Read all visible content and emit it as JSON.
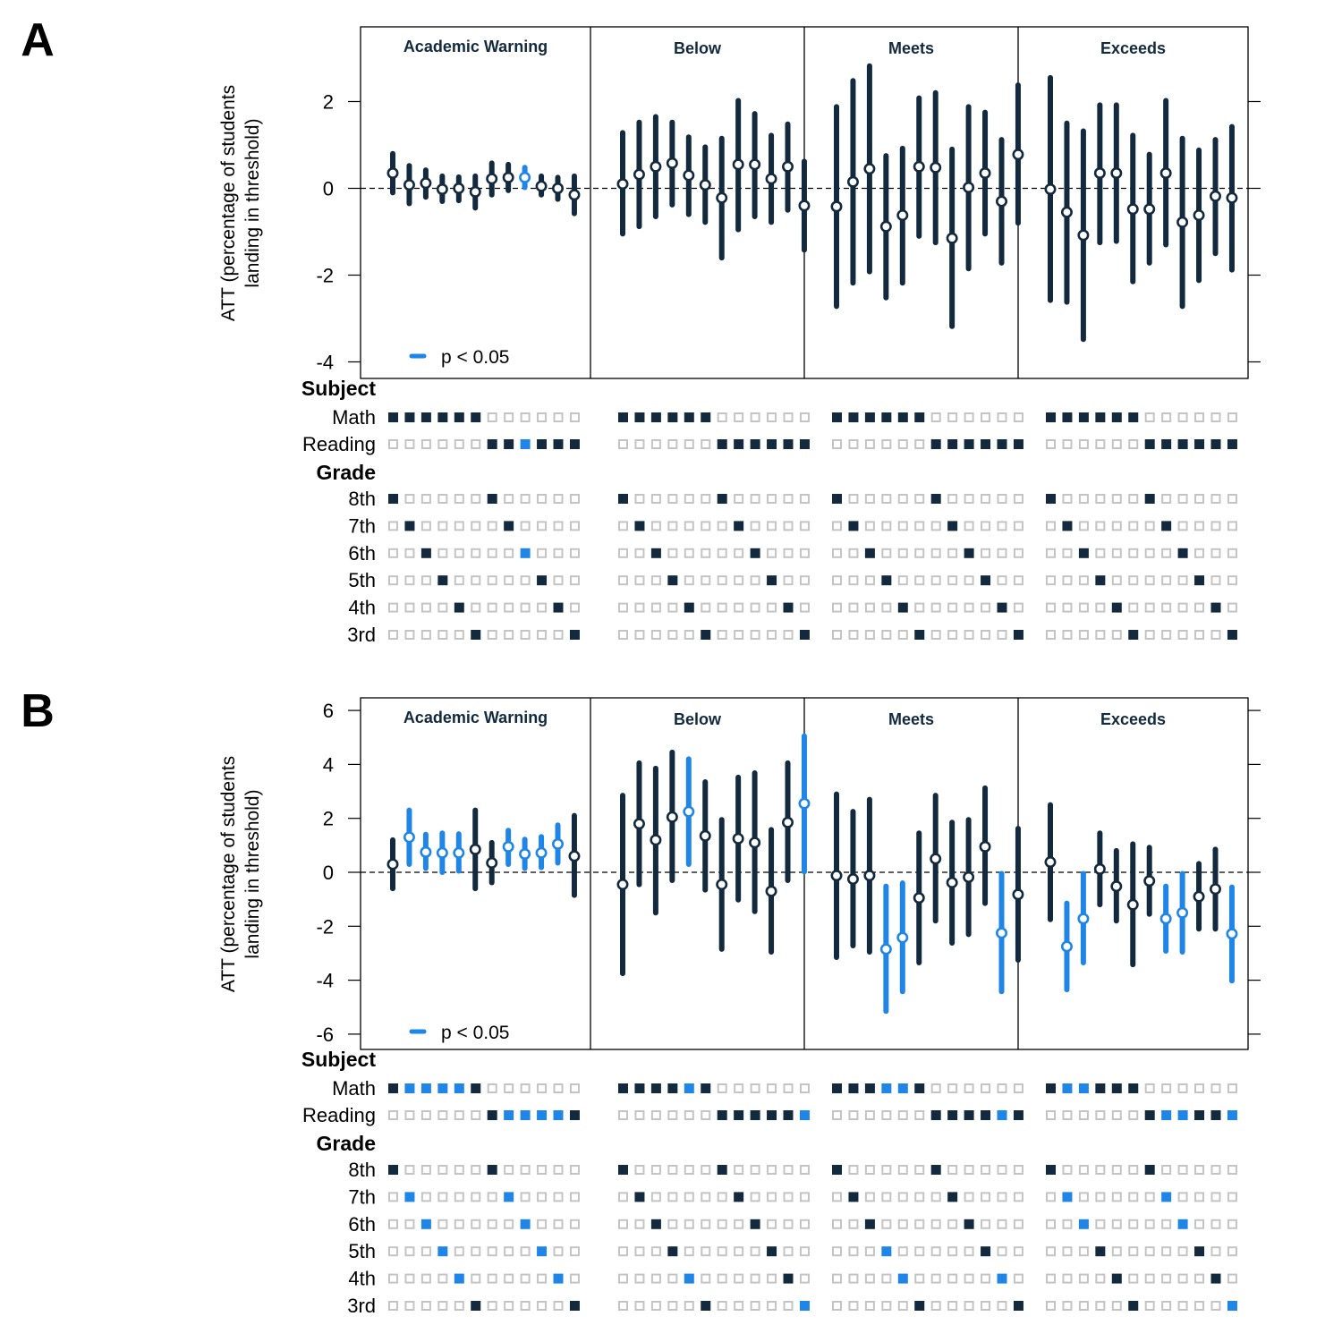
{
  "figure": {
    "panel_labels": [
      "A",
      "B"
    ],
    "colors": {
      "dark": "#13293d",
      "sig": "#1f86e8",
      "empty_square": "#c4c4c4",
      "point_fill": "#ffffff"
    },
    "legend_label": "p < 0.05",
    "ylabel_line1": "ATT (percentage of students",
    "ylabel_line2": "landing in threshold)",
    "facets": [
      "Academic Warning",
      "Below",
      "Meets",
      "Exceeds"
    ],
    "matrix": {
      "subject_header": "Subject",
      "subject_rows": [
        "Math",
        "Reading"
      ],
      "grade_header": "Grade",
      "grade_rows": [
        "8th",
        "7th",
        "6th",
        "5th",
        "4th",
        "3rd"
      ],
      "estimate_order": [
        {
          "subject": "Math",
          "grade": "8th"
        },
        {
          "subject": "Math",
          "grade": "7th"
        },
        {
          "subject": "Math",
          "grade": "6th"
        },
        {
          "subject": "Math",
          "grade": "5th"
        },
        {
          "subject": "Math",
          "grade": "4th"
        },
        {
          "subject": "Math",
          "grade": "3rd"
        },
        {
          "subject": "Reading",
          "grade": "8th"
        },
        {
          "subject": "Reading",
          "grade": "7th"
        },
        {
          "subject": "Reading",
          "grade": "6th"
        },
        {
          "subject": "Reading",
          "grade": "5th"
        },
        {
          "subject": "Reading",
          "grade": "4th"
        },
        {
          "subject": "Reading",
          "grade": "3rd"
        }
      ]
    }
  },
  "chart_data": [
    {
      "panel": "A",
      "type": "scatter",
      "title": "",
      "ylabel": "ATT (percentage of students landing in threshold)",
      "ylim": [
        -4.2,
        3.7
      ],
      "yticks": [
        -4,
        -2,
        0,
        2
      ],
      "reference_line": 0,
      "facets": [
        {
          "name": "Academic Warning",
          "estimates": [
            {
              "est": 0.35,
              "lo": -0.1,
              "hi": 0.8,
              "sig": false
            },
            {
              "est": 0.08,
              "lo": -0.35,
              "hi": 0.52,
              "sig": false
            },
            {
              "est": 0.12,
              "lo": -0.2,
              "hi": 0.42,
              "sig": false
            },
            {
              "est": -0.02,
              "lo": -0.3,
              "hi": 0.28,
              "sig": false
            },
            {
              "est": 0.0,
              "lo": -0.28,
              "hi": 0.26,
              "sig": false
            },
            {
              "est": -0.08,
              "lo": -0.45,
              "hi": 0.28,
              "sig": false
            },
            {
              "est": 0.22,
              "lo": -0.15,
              "hi": 0.58,
              "sig": false
            },
            {
              "est": 0.25,
              "lo": -0.05,
              "hi": 0.55,
              "sig": false
            },
            {
              "est": 0.25,
              "lo": 0.02,
              "hi": 0.48,
              "sig": true
            },
            {
              "est": 0.05,
              "lo": -0.15,
              "hi": 0.28,
              "sig": false
            },
            {
              "est": 0.0,
              "lo": -0.25,
              "hi": 0.25,
              "sig": false
            },
            {
              "est": -0.15,
              "lo": -0.58,
              "hi": 0.28,
              "sig": false
            }
          ]
        },
        {
          "name": "Below",
          "estimates": [
            {
              "est": 0.1,
              "lo": -1.05,
              "hi": 1.28,
              "sig": false
            },
            {
              "est": 0.32,
              "lo": -0.88,
              "hi": 1.52,
              "sig": false
            },
            {
              "est": 0.5,
              "lo": -0.65,
              "hi": 1.65,
              "sig": false
            },
            {
              "est": 0.58,
              "lo": -0.38,
              "hi": 1.52,
              "sig": false
            },
            {
              "est": 0.3,
              "lo": -0.6,
              "hi": 1.18,
              "sig": false
            },
            {
              "est": 0.08,
              "lo": -0.78,
              "hi": 0.95,
              "sig": false
            },
            {
              "est": -0.22,
              "lo": -1.6,
              "hi": 1.15,
              "sig": false
            },
            {
              "est": 0.55,
              "lo": -0.95,
              "hi": 2.02,
              "sig": false
            },
            {
              "est": 0.55,
              "lo": -0.65,
              "hi": 1.72,
              "sig": false
            },
            {
              "est": 0.22,
              "lo": -0.78,
              "hi": 1.22,
              "sig": false
            },
            {
              "est": 0.5,
              "lo": -0.5,
              "hi": 1.48,
              "sig": false
            },
            {
              "est": -0.4,
              "lo": -1.42,
              "hi": 0.62,
              "sig": false
            }
          ]
        },
        {
          "name": "Meets",
          "estimates": [
            {
              "est": -0.42,
              "lo": -2.72,
              "hi": 1.88,
              "sig": false
            },
            {
              "est": 0.15,
              "lo": -2.18,
              "hi": 2.48,
              "sig": false
            },
            {
              "est": 0.45,
              "lo": -1.92,
              "hi": 2.82,
              "sig": false
            },
            {
              "est": -0.88,
              "lo": -2.52,
              "hi": 0.75,
              "sig": false
            },
            {
              "est": -0.62,
              "lo": -2.18,
              "hi": 0.92,
              "sig": false
            },
            {
              "est": 0.5,
              "lo": -1.1,
              "hi": 2.08,
              "sig": false
            },
            {
              "est": 0.48,
              "lo": -1.25,
              "hi": 2.2,
              "sig": false
            },
            {
              "est": -1.15,
              "lo": -3.18,
              "hi": 0.9,
              "sig": false
            },
            {
              "est": 0.02,
              "lo": -1.85,
              "hi": 1.88,
              "sig": false
            },
            {
              "est": 0.35,
              "lo": -1.05,
              "hi": 1.75,
              "sig": false
            },
            {
              "est": -0.3,
              "lo": -1.72,
              "hi": 1.12,
              "sig": false
            },
            {
              "est": 0.78,
              "lo": -0.8,
              "hi": 2.38,
              "sig": false
            }
          ]
        },
        {
          "name": "Exceeds",
          "estimates": [
            {
              "est": -0.02,
              "lo": -2.58,
              "hi": 2.55,
              "sig": false
            },
            {
              "est": -0.55,
              "lo": -2.62,
              "hi": 1.5,
              "sig": false
            },
            {
              "est": -1.08,
              "lo": -3.48,
              "hi": 1.32,
              "sig": false
            },
            {
              "est": 0.35,
              "lo": -1.25,
              "hi": 1.92,
              "sig": false
            },
            {
              "est": 0.35,
              "lo": -1.22,
              "hi": 1.92,
              "sig": false
            },
            {
              "est": -0.48,
              "lo": -2.15,
              "hi": 1.22,
              "sig": false
            },
            {
              "est": -0.48,
              "lo": -1.72,
              "hi": 0.78,
              "sig": false
            },
            {
              "est": 0.35,
              "lo": -1.3,
              "hi": 2.02,
              "sig": false
            },
            {
              "est": -0.78,
              "lo": -2.72,
              "hi": 1.15,
              "sig": false
            },
            {
              "est": -0.62,
              "lo": -2.12,
              "hi": 0.88,
              "sig": false
            },
            {
              "est": -0.18,
              "lo": -1.5,
              "hi": 1.12,
              "sig": false
            },
            {
              "est": -0.22,
              "lo": -1.88,
              "hi": 1.42,
              "sig": false
            }
          ]
        }
      ]
    },
    {
      "panel": "B",
      "type": "scatter",
      "title": "",
      "ylabel": "ATT (percentage of students landing in threshold)",
      "ylim": [
        -6.6,
        6.5
      ],
      "yticks": [
        -6,
        -4,
        -2,
        0,
        2,
        4,
        6
      ],
      "reference_line": 0,
      "facets": [
        {
          "name": "Academic Warning",
          "estimates": [
            {
              "est": 0.3,
              "lo": -0.6,
              "hi": 1.2,
              "sig": false
            },
            {
              "est": 1.3,
              "lo": 0.3,
              "hi": 2.3,
              "sig": true
            },
            {
              "est": 0.75,
              "lo": 0.15,
              "hi": 1.4,
              "sig": true
            },
            {
              "est": 0.72,
              "lo": 0.0,
              "hi": 1.45,
              "sig": true
            },
            {
              "est": 0.72,
              "lo": 0.05,
              "hi": 1.42,
              "sig": true
            },
            {
              "est": 0.85,
              "lo": -0.6,
              "hi": 2.3,
              "sig": false
            },
            {
              "est": 0.35,
              "lo": -0.38,
              "hi": 1.1,
              "sig": false
            },
            {
              "est": 0.95,
              "lo": 0.3,
              "hi": 1.55,
              "sig": true
            },
            {
              "est": 0.68,
              "lo": 0.15,
              "hi": 1.22,
              "sig": true
            },
            {
              "est": 0.72,
              "lo": 0.18,
              "hi": 1.32,
              "sig": true
            },
            {
              "est": 1.05,
              "lo": 0.35,
              "hi": 1.75,
              "sig": true
            },
            {
              "est": 0.6,
              "lo": -0.85,
              "hi": 2.1,
              "sig": false
            }
          ]
        },
        {
          "name": "Below",
          "estimates": [
            {
              "est": -0.45,
              "lo": -3.75,
              "hi": 2.85,
              "sig": false
            },
            {
              "est": 1.8,
              "lo": -0.45,
              "hi": 4.05,
              "sig": false
            },
            {
              "est": 1.2,
              "lo": -1.5,
              "hi": 3.85,
              "sig": false
            },
            {
              "est": 2.05,
              "lo": -0.3,
              "hi": 4.45,
              "sig": false
            },
            {
              "est": 2.25,
              "lo": 0.3,
              "hi": 4.2,
              "sig": true
            },
            {
              "est": 1.35,
              "lo": -0.65,
              "hi": 3.35,
              "sig": false
            },
            {
              "est": -0.45,
              "lo": -2.85,
              "hi": 1.95,
              "sig": false
            },
            {
              "est": 1.25,
              "lo": -1.02,
              "hi": 3.52,
              "sig": false
            },
            {
              "est": 1.1,
              "lo": -1.45,
              "hi": 3.68,
              "sig": false
            },
            {
              "est": -0.7,
              "lo": -2.95,
              "hi": 1.58,
              "sig": false
            },
            {
              "est": 1.85,
              "lo": -0.3,
              "hi": 4.05,
              "sig": false
            },
            {
              "est": 2.55,
              "lo": 0.02,
              "hi": 5.05,
              "sig": true
            }
          ]
        },
        {
          "name": "Meets",
          "estimates": [
            {
              "est": -0.12,
              "lo": -3.15,
              "hi": 2.9,
              "sig": false
            },
            {
              "est": -0.25,
              "lo": -2.72,
              "hi": 2.25,
              "sig": false
            },
            {
              "est": -0.12,
              "lo": -2.95,
              "hi": 2.7,
              "sig": false
            },
            {
              "est": -2.85,
              "lo": -5.15,
              "hi": -0.52,
              "sig": true
            },
            {
              "est": -2.42,
              "lo": -4.42,
              "hi": -0.4,
              "sig": true
            },
            {
              "est": -0.95,
              "lo": -3.35,
              "hi": 1.45,
              "sig": false
            },
            {
              "est": 0.5,
              "lo": -1.8,
              "hi": 2.85,
              "sig": false
            },
            {
              "est": -0.38,
              "lo": -2.62,
              "hi": 1.85,
              "sig": false
            },
            {
              "est": -0.18,
              "lo": -2.3,
              "hi": 1.95,
              "sig": false
            },
            {
              "est": 0.95,
              "lo": -1.15,
              "hi": 3.12,
              "sig": false
            },
            {
              "est": -2.25,
              "lo": -4.42,
              "hi": -0.05,
              "sig": true
            },
            {
              "est": -0.82,
              "lo": -3.25,
              "hi": 1.62,
              "sig": false
            }
          ]
        },
        {
          "name": "Exceeds",
          "estimates": [
            {
              "est": 0.38,
              "lo": -1.75,
              "hi": 2.5,
              "sig": false
            },
            {
              "est": -2.75,
              "lo": -4.35,
              "hi": -1.15,
              "sig": true
            },
            {
              "est": -1.72,
              "lo": -3.35,
              "hi": -0.05,
              "sig": true
            },
            {
              "est": 0.12,
              "lo": -1.2,
              "hi": 1.45,
              "sig": false
            },
            {
              "est": -0.52,
              "lo": -1.8,
              "hi": 0.8,
              "sig": false
            },
            {
              "est": -1.2,
              "lo": -3.42,
              "hi": 1.05,
              "sig": false
            },
            {
              "est": -0.32,
              "lo": -1.55,
              "hi": 0.92,
              "sig": false
            },
            {
              "est": -1.72,
              "lo": -2.92,
              "hi": -0.52,
              "sig": true
            },
            {
              "est": -1.5,
              "lo": -2.95,
              "hi": -0.05,
              "sig": true
            },
            {
              "est": -0.9,
              "lo": -2.1,
              "hi": 0.32,
              "sig": false
            },
            {
              "est": -0.62,
              "lo": -2.1,
              "hi": 0.85,
              "sig": false
            },
            {
              "est": -2.28,
              "lo": -4.02,
              "hi": -0.55,
              "sig": true
            }
          ]
        }
      ]
    }
  ]
}
